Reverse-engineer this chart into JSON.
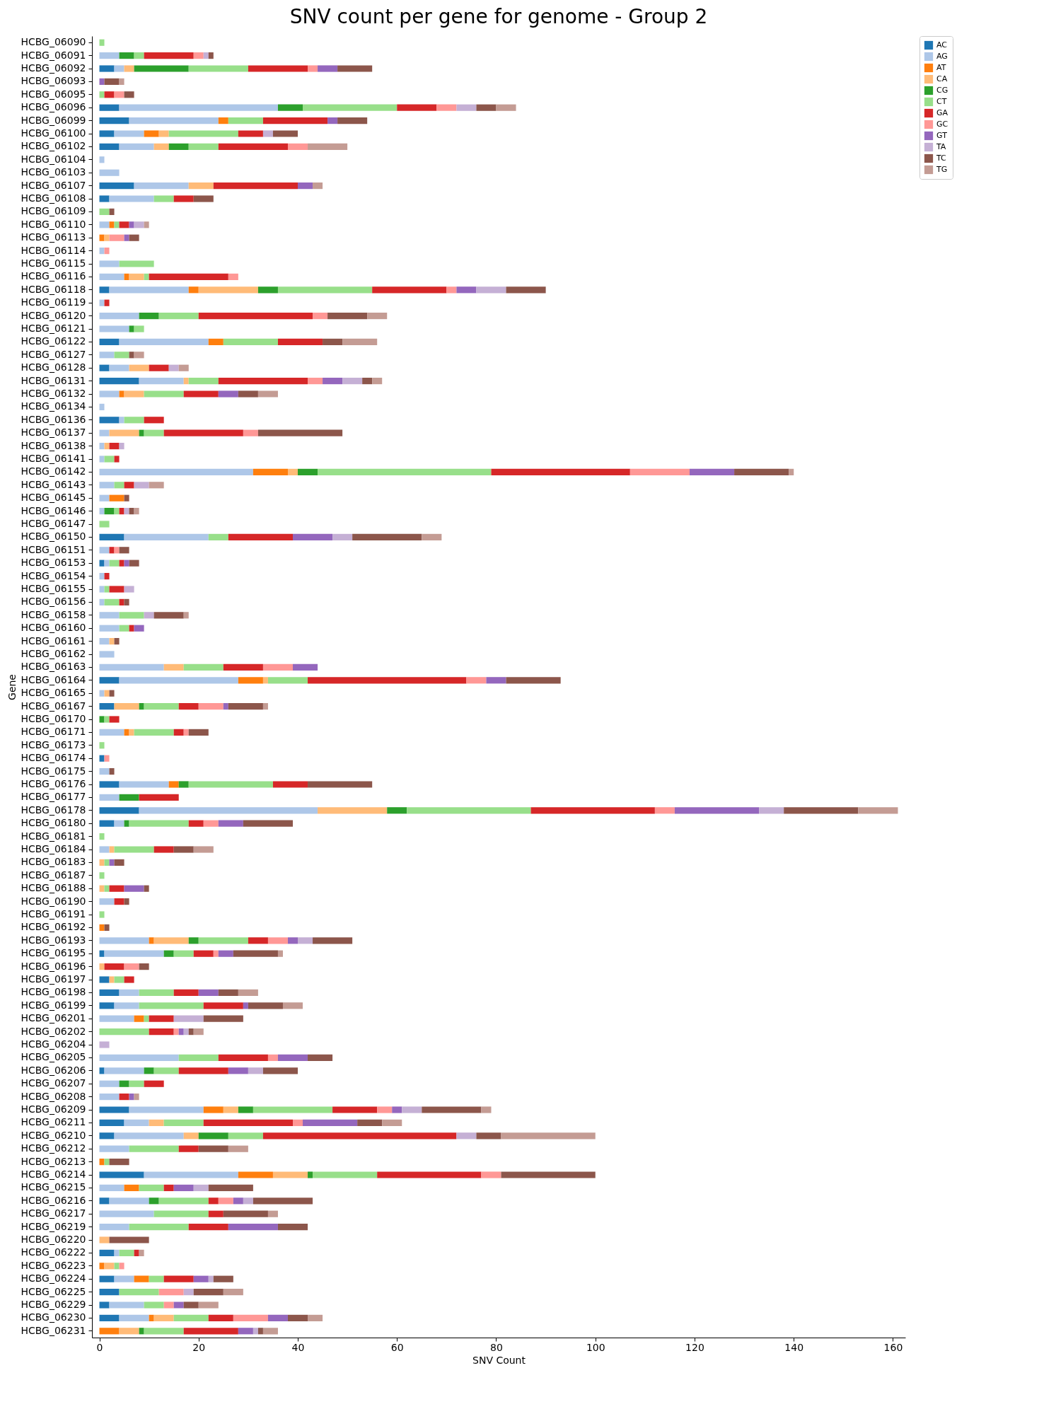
{
  "chart_data": {
    "type": "bar",
    "orientation": "horizontal",
    "stacked": true,
    "title": "SNV count per gene for genome - Group 2",
    "xlabel": "SNV Count",
    "ylabel": "Gene",
    "categories": [
      "HCBG_06090",
      "HCBG_06091",
      "HCBG_06092",
      "HCBG_06093",
      "HCBG_06095",
      "HCBG_06096",
      "HCBG_06099",
      "HCBG_06100",
      "HCBG_06102",
      "HCBG_06104",
      "HCBG_06103",
      "HCBG_06107",
      "HCBG_06108",
      "HCBG_06109",
      "HCBG_06110",
      "HCBG_06113",
      "HCBG_06114",
      "HCBG_06115",
      "HCBG_06116",
      "HCBG_06118",
      "HCBG_06119",
      "HCBG_06120",
      "HCBG_06121",
      "HCBG_06122",
      "HCBG_06127",
      "HCBG_06128",
      "HCBG_06131",
      "HCBG_06132",
      "HCBG_06134",
      "HCBG_06136",
      "HCBG_06137",
      "HCBG_06138",
      "HCBG_06141",
      "HCBG_06142",
      "HCBG_06143",
      "HCBG_06145",
      "HCBG_06146",
      "HCBG_06147",
      "HCBG_06150",
      "HCBG_06151",
      "HCBG_06153",
      "HCBG_06154",
      "HCBG_06155",
      "HCBG_06156",
      "HCBG_06158",
      "HCBG_06160",
      "HCBG_06161",
      "HCBG_06162",
      "HCBG_06163",
      "HCBG_06164",
      "HCBG_06165",
      "HCBG_06167",
      "HCBG_06170",
      "HCBG_06171",
      "HCBG_06173",
      "HCBG_06174",
      "HCBG_06175",
      "HCBG_06176",
      "HCBG_06177",
      "HCBG_06178",
      "HCBG_06180",
      "HCBG_06181",
      "HCBG_06184",
      "HCBG_06183",
      "HCBG_06187",
      "HCBG_06188",
      "HCBG_06190",
      "HCBG_06191",
      "HCBG_06192",
      "HCBG_06193",
      "HCBG_06195",
      "HCBG_06196",
      "HCBG_06197",
      "HCBG_06198",
      "HCBG_06199",
      "HCBG_06201",
      "HCBG_06202",
      "HCBG_06204",
      "HCBG_06205",
      "HCBG_06206",
      "HCBG_06207",
      "HCBG_06208",
      "HCBG_06209",
      "HCBG_06211",
      "HCBG_06210",
      "HCBG_06212",
      "HCBG_06213",
      "HCBG_06214",
      "HCBG_06215",
      "HCBG_06216",
      "HCBG_06217",
      "HCBG_06219",
      "HCBG_06220",
      "HCBG_06222",
      "HCBG_06223",
      "HCBG_06224",
      "HCBG_06225",
      "HCBG_06229",
      "HCBG_06230",
      "HCBG_06231"
    ],
    "series": [
      {
        "name": "AC",
        "color": "#1f77b4",
        "values": [
          0,
          0,
          3,
          0,
          0,
          4,
          6,
          3,
          4,
          0,
          0,
          7,
          2,
          0,
          0,
          0,
          0,
          0,
          0,
          2,
          0,
          0,
          0,
          4,
          0,
          2,
          8,
          0,
          0,
          4,
          0,
          0,
          0,
          0,
          0,
          0,
          0,
          0,
          5,
          0,
          1,
          0,
          0,
          0,
          0,
          0,
          0,
          0,
          0,
          4,
          0,
          3,
          0,
          0,
          0,
          1,
          0,
          4,
          0,
          8,
          3,
          0,
          0,
          0,
          0,
          0,
          0,
          0,
          0,
          0,
          1,
          0,
          2,
          4,
          3,
          0,
          0,
          0,
          0,
          1,
          0,
          0,
          6,
          5,
          3,
          0,
          0,
          9,
          0,
          2,
          0,
          0,
          0,
          3,
          0,
          3,
          4,
          2,
          4,
          0
        ]
      },
      {
        "name": "AG",
        "color": "#aec7e8",
        "values": [
          0,
          4,
          2,
          0,
          0,
          32,
          18,
          6,
          7,
          1,
          4,
          11,
          9,
          0,
          2,
          0,
          1,
          4,
          5,
          16,
          1,
          8,
          6,
          18,
          3,
          4,
          9,
          4,
          1,
          1,
          2,
          1,
          1,
          31,
          3,
          2,
          1,
          0,
          17,
          2,
          1,
          1,
          1,
          1,
          4,
          4,
          2,
          3,
          13,
          24,
          1,
          0,
          0,
          5,
          0,
          0,
          2,
          10,
          4,
          36,
          2,
          0,
          2,
          0,
          0,
          0,
          3,
          0,
          0,
          10,
          12,
          0,
          0,
          4,
          5,
          7,
          0,
          0,
          16,
          8,
          4,
          4,
          15,
          5,
          14,
          6,
          0,
          19,
          5,
          8,
          11,
          6,
          0,
          1,
          0,
          4,
          0,
          7,
          6,
          0
        ]
      },
      {
        "name": "AT",
        "color": "#ff7f0e",
        "values": [
          0,
          0,
          0,
          0,
          0,
          0,
          2,
          3,
          0,
          0,
          0,
          0,
          0,
          0,
          1,
          1,
          0,
          0,
          1,
          2,
          0,
          0,
          0,
          3,
          0,
          0,
          0,
          1,
          0,
          0,
          0,
          0,
          0,
          7,
          0,
          3,
          0,
          0,
          0,
          0,
          0,
          0,
          0,
          0,
          0,
          0,
          0,
          0,
          0,
          5,
          0,
          0,
          0,
          1,
          0,
          0,
          0,
          2,
          0,
          0,
          0,
          0,
          0,
          0,
          0,
          0,
          0,
          0,
          1,
          1,
          0,
          0,
          0,
          0,
          0,
          2,
          0,
          0,
          0,
          0,
          0,
          0,
          4,
          0,
          0,
          0,
          1,
          7,
          3,
          0,
          0,
          0,
          0,
          0,
          1,
          3,
          0,
          0,
          1,
          4
        ]
      },
      {
        "name": "CA",
        "color": "#ffbb78",
        "values": [
          0,
          0,
          2,
          0,
          0,
          0,
          0,
          2,
          3,
          0,
          0,
          5,
          0,
          0,
          0,
          1,
          0,
          0,
          3,
          12,
          0,
          0,
          0,
          0,
          0,
          4,
          1,
          4,
          0,
          0,
          6,
          1,
          0,
          2,
          0,
          0,
          0,
          0,
          0,
          0,
          0,
          0,
          0,
          0,
          0,
          0,
          1,
          0,
          4,
          1,
          1,
          5,
          0,
          1,
          0,
          0,
          0,
          0,
          0,
          14,
          0,
          0,
          1,
          1,
          0,
          1,
          0,
          0,
          0,
          7,
          0,
          1,
          1,
          0,
          0,
          0,
          0,
          0,
          0,
          0,
          0,
          0,
          3,
          3,
          3,
          0,
          0,
          7,
          0,
          0,
          0,
          0,
          2,
          0,
          2,
          0,
          0,
          0,
          4,
          4
        ]
      },
      {
        "name": "CG",
        "color": "#2ca02c",
        "values": [
          0,
          3,
          11,
          0,
          0,
          5,
          0,
          0,
          4,
          0,
          0,
          0,
          0,
          0,
          0,
          0,
          0,
          0,
          0,
          4,
          0,
          4,
          1,
          0,
          0,
          0,
          0,
          0,
          0,
          0,
          1,
          0,
          0,
          4,
          0,
          0,
          2,
          0,
          0,
          0,
          0,
          0,
          0,
          0,
          0,
          0,
          0,
          0,
          0,
          0,
          0,
          1,
          1,
          0,
          0,
          0,
          0,
          2,
          4,
          4,
          1,
          0,
          0,
          0,
          0,
          0,
          0,
          0,
          0,
          2,
          2,
          0,
          0,
          0,
          0,
          0,
          0,
          0,
          0,
          2,
          2,
          0,
          3,
          0,
          6,
          0,
          0,
          1,
          0,
          2,
          0,
          0,
          0,
          0,
          0,
          0,
          0,
          0,
          0,
          1
        ]
      },
      {
        "name": "CT",
        "color": "#98df8a",
        "values": [
          1,
          2,
          12,
          0,
          1,
          19,
          7,
          14,
          6,
          0,
          0,
          0,
          4,
          2,
          1,
          0,
          0,
          7,
          1,
          19,
          0,
          8,
          2,
          11,
          3,
          0,
          6,
          8,
          0,
          4,
          4,
          0,
          2,
          35,
          2,
          0,
          1,
          2,
          4,
          0,
          2,
          0,
          1,
          3,
          5,
          2,
          0,
          0,
          8,
          8,
          0,
          7,
          1,
          8,
          1,
          0,
          0,
          17,
          0,
          25,
          12,
          1,
          8,
          1,
          1,
          1,
          0,
          1,
          0,
          10,
          4,
          0,
          2,
          7,
          13,
          1,
          10,
          0,
          8,
          5,
          3,
          0,
          16,
          8,
          7,
          10,
          1,
          13,
          5,
          10,
          11,
          12,
          0,
          3,
          1,
          3,
          8,
          4,
          7,
          8
        ]
      },
      {
        "name": "GA",
        "color": "#d62728",
        "values": [
          0,
          10,
          12,
          0,
          2,
          8,
          13,
          5,
          14,
          0,
          0,
          17,
          4,
          0,
          2,
          0,
          0,
          0,
          16,
          15,
          1,
          23,
          0,
          9,
          0,
          4,
          18,
          7,
          0,
          4,
          16,
          2,
          1,
          28,
          2,
          0,
          1,
          0,
          13,
          1,
          1,
          1,
          3,
          1,
          0,
          1,
          0,
          0,
          8,
          32,
          0,
          4,
          2,
          2,
          0,
          0,
          0,
          7,
          8,
          25,
          3,
          0,
          4,
          0,
          0,
          3,
          2,
          0,
          0,
          4,
          4,
          4,
          2,
          5,
          8,
          5,
          5,
          0,
          10,
          10,
          4,
          2,
          9,
          18,
          39,
          4,
          0,
          21,
          2,
          2,
          3,
          8,
          0,
          1,
          0,
          6,
          0,
          0,
          5,
          11
        ]
      },
      {
        "name": "GC",
        "color": "#ff9896",
        "values": [
          0,
          2,
          2,
          0,
          2,
          4,
          0,
          0,
          4,
          0,
          0,
          0,
          0,
          0,
          0,
          3,
          1,
          0,
          2,
          2,
          0,
          3,
          0,
          0,
          0,
          0,
          3,
          0,
          0,
          0,
          3,
          0,
          0,
          12,
          0,
          0,
          0,
          0,
          0,
          1,
          0,
          0,
          0,
          0,
          0,
          0,
          0,
          0,
          6,
          4,
          0,
          5,
          0,
          1,
          0,
          1,
          0,
          0,
          0,
          4,
          3,
          0,
          0,
          0,
          0,
          0,
          0,
          0,
          0,
          4,
          1,
          3,
          0,
          0,
          0,
          0,
          1,
          0,
          2,
          0,
          0,
          0,
          3,
          2,
          0,
          0,
          0,
          4,
          0,
          3,
          0,
          0,
          0,
          0,
          1,
          0,
          5,
          2,
          7,
          0
        ]
      },
      {
        "name": "GT",
        "color": "#9467bd",
        "values": [
          0,
          0,
          4,
          1,
          0,
          0,
          2,
          0,
          0,
          0,
          0,
          3,
          0,
          0,
          1,
          1,
          0,
          0,
          0,
          4,
          0,
          0,
          0,
          0,
          0,
          0,
          4,
          4,
          0,
          0,
          0,
          0,
          0,
          9,
          0,
          0,
          0,
          0,
          8,
          0,
          1,
          0,
          0,
          0,
          0,
          2,
          0,
          0,
          5,
          4,
          0,
          1,
          0,
          0,
          0,
          0,
          0,
          0,
          0,
          17,
          5,
          0,
          0,
          1,
          0,
          4,
          0,
          0,
          0,
          2,
          3,
          0,
          0,
          4,
          1,
          0,
          1,
          0,
          6,
          4,
          0,
          1,
          2,
          11,
          0,
          0,
          0,
          0,
          4,
          2,
          0,
          10,
          0,
          0,
          0,
          3,
          0,
          2,
          4,
          3
        ]
      },
      {
        "name": "TA",
        "color": "#c5b0d5",
        "values": [
          0,
          1,
          0,
          0,
          0,
          4,
          0,
          2,
          0,
          0,
          0,
          0,
          0,
          0,
          2,
          0,
          0,
          0,
          0,
          6,
          0,
          0,
          0,
          0,
          0,
          2,
          4,
          0,
          0,
          0,
          0,
          1,
          0,
          0,
          3,
          0,
          1,
          0,
          4,
          0,
          0,
          0,
          2,
          0,
          2,
          0,
          0,
          0,
          0,
          0,
          0,
          0,
          0,
          0,
          0,
          0,
          0,
          0,
          0,
          5,
          0,
          0,
          0,
          0,
          0,
          0,
          0,
          0,
          0,
          3,
          0,
          0,
          0,
          0,
          0,
          6,
          1,
          2,
          0,
          3,
          0,
          0,
          4,
          0,
          4,
          0,
          0,
          0,
          3,
          2,
          0,
          0,
          0,
          0,
          0,
          1,
          2,
          0,
          0,
          1
        ]
      },
      {
        "name": "TC",
        "color": "#8c564b",
        "values": [
          0,
          1,
          7,
          3,
          2,
          4,
          6,
          5,
          0,
          0,
          0,
          0,
          4,
          1,
          0,
          2,
          0,
          0,
          0,
          8,
          0,
          8,
          0,
          4,
          1,
          0,
          2,
          4,
          0,
          0,
          17,
          0,
          0,
          11,
          0,
          1,
          1,
          0,
          14,
          2,
          2,
          0,
          0,
          1,
          6,
          0,
          1,
          0,
          0,
          11,
          1,
          7,
          0,
          4,
          0,
          0,
          1,
          13,
          0,
          15,
          10,
          0,
          4,
          2,
          0,
          1,
          1,
          0,
          1,
          8,
          9,
          2,
          0,
          4,
          7,
          8,
          1,
          0,
          5,
          7,
          0,
          0,
          12,
          5,
          5,
          6,
          4,
          19,
          9,
          12,
          9,
          6,
          8,
          0,
          0,
          4,
          6,
          3,
          4,
          1
        ]
      },
      {
        "name": "TG",
        "color": "#c49c94",
        "values": [
          0,
          0,
          0,
          1,
          0,
          4,
          0,
          0,
          8,
          0,
          0,
          2,
          0,
          0,
          1,
          0,
          0,
          0,
          0,
          0,
          0,
          4,
          0,
          7,
          2,
          2,
          2,
          4,
          0,
          0,
          0,
          0,
          0,
          1,
          3,
          0,
          1,
          0,
          4,
          0,
          0,
          0,
          0,
          0,
          1,
          0,
          0,
          0,
          0,
          0,
          0,
          1,
          0,
          0,
          0,
          0,
          0,
          0,
          0,
          8,
          0,
          0,
          4,
          0,
          0,
          0,
          0,
          0,
          0,
          0,
          1,
          0,
          0,
          4,
          4,
          0,
          2,
          0,
          0,
          0,
          0,
          1,
          2,
          4,
          19,
          4,
          0,
          0,
          0,
          0,
          2,
          0,
          0,
          1,
          0,
          0,
          4,
          4,
          3,
          3
        ]
      }
    ],
    "xlim": [
      -1.5,
      162.5
    ],
    "xticks": [
      0,
      20,
      40,
      60,
      80,
      100,
      120,
      140,
      160
    ],
    "legend": "top right"
  }
}
